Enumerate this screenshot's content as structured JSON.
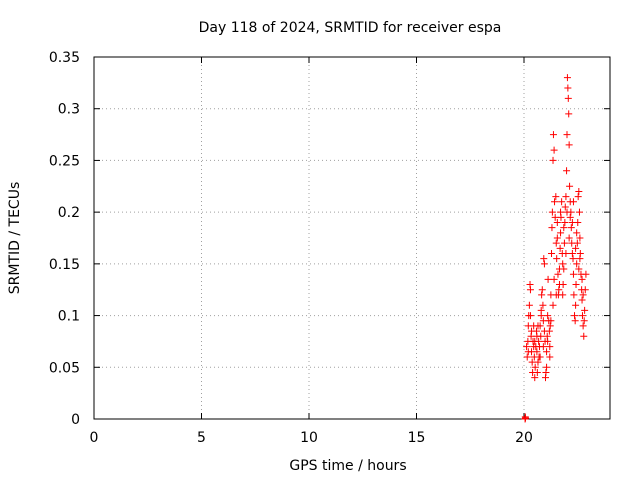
{
  "chart_data": {
    "type": "scatter",
    "title": "Day 118 of 2024, SRMTID for receiver espa",
    "xlabel": "GPS time / hours",
    "ylabel": "SRMTID / TECUs",
    "xlim": [
      0,
      24
    ],
    "ylim": [
      0,
      0.35
    ],
    "x_ticks": [
      "0",
      "5",
      "10",
      "15",
      "20"
    ],
    "y_ticks": [
      "0",
      "0.05",
      "0.1",
      "0.15",
      "0.2",
      "0.25",
      "0.3",
      "0.35"
    ],
    "grid": true,
    "marker": "plus",
    "color": "#ff0000",
    "series": [
      {
        "points": [
          [
            20.05,
            0.0
          ],
          [
            20.06,
            0.002
          ],
          [
            20.07,
            0.001
          ],
          [
            20.12,
            0.07
          ],
          [
            20.15,
            0.06
          ],
          [
            20.18,
            0.075
          ],
          [
            20.2,
            0.09
          ],
          [
            20.22,
            0.1
          ],
          [
            20.25,
            0.11
          ],
          [
            20.28,
            0.13
          ],
          [
            20.3,
            0.125
          ],
          [
            20.33,
            0.08
          ],
          [
            20.35,
            0.065
          ],
          [
            20.38,
            0.055
          ],
          [
            20.4,
            0.045
          ],
          [
            20.42,
            0.075
          ],
          [
            20.45,
            0.09
          ],
          [
            20.48,
            0.06
          ],
          [
            20.5,
            0.04
          ],
          [
            20.52,
            0.05
          ],
          [
            20.55,
            0.07
          ],
          [
            20.58,
            0.085
          ],
          [
            20.6,
            0.065
          ],
          [
            20.62,
            0.045
          ],
          [
            20.65,
            0.055
          ],
          [
            20.68,
            0.075
          ],
          [
            20.7,
            0.06
          ],
          [
            20.72,
            0.07
          ],
          [
            20.75,
            0.09
          ],
          [
            20.78,
            0.08
          ],
          [
            20.8,
            0.1
          ],
          [
            20.82,
            0.12
          ],
          [
            20.85,
            0.125
          ],
          [
            20.88,
            0.11
          ],
          [
            20.9,
            0.095
          ],
          [
            20.92,
            0.155
          ],
          [
            20.95,
            0.15
          ],
          [
            20.98,
            0.075
          ],
          [
            21.0,
            0.04
          ],
          [
            21.02,
            0.045
          ],
          [
            21.05,
            0.065
          ],
          [
            21.08,
            0.08
          ],
          [
            21.1,
            0.1
          ],
          [
            21.12,
            0.135
          ],
          [
            21.15,
            0.095
          ],
          [
            21.18,
            0.085
          ],
          [
            21.2,
            0.07
          ],
          [
            21.22,
            0.09
          ],
          [
            21.25,
            0.12
          ],
          [
            21.28,
            0.16
          ],
          [
            21.3,
            0.185
          ],
          [
            21.32,
            0.2
          ],
          [
            21.35,
            0.25
          ],
          [
            21.37,
            0.275
          ],
          [
            21.4,
            0.26
          ],
          [
            21.42,
            0.21
          ],
          [
            21.45,
            0.195
          ],
          [
            21.48,
            0.215
          ],
          [
            21.5,
            0.17
          ],
          [
            21.52,
            0.155
          ],
          [
            21.55,
            0.175
          ],
          [
            21.58,
            0.14
          ],
          [
            21.6,
            0.12
          ],
          [
            21.62,
            0.125
          ],
          [
            21.65,
            0.13
          ],
          [
            21.68,
            0.165
          ],
          [
            21.7,
            0.18
          ],
          [
            21.72,
            0.195
          ],
          [
            21.75,
            0.21
          ],
          [
            21.78,
            0.16
          ],
          [
            21.8,
            0.15
          ],
          [
            21.82,
            0.13
          ],
          [
            21.85,
            0.145
          ],
          [
            21.88,
            0.17
          ],
          [
            21.9,
            0.19
          ],
          [
            21.92,
            0.205
          ],
          [
            21.95,
            0.215
          ],
          [
            21.98,
            0.24
          ],
          [
            22.0,
            0.275
          ],
          [
            22.02,
            0.33
          ],
          [
            22.04,
            0.32
          ],
          [
            22.06,
            0.31
          ],
          [
            22.08,
            0.295
          ],
          [
            22.1,
            0.265
          ],
          [
            22.12,
            0.225
          ],
          [
            22.15,
            0.21
          ],
          [
            22.18,
            0.2
          ],
          [
            22.2,
            0.185
          ],
          [
            22.22,
            0.17
          ],
          [
            22.25,
            0.16
          ],
          [
            22.28,
            0.155
          ],
          [
            22.3,
            0.14
          ],
          [
            22.32,
            0.12
          ],
          [
            22.35,
            0.1
          ],
          [
            22.38,
            0.095
          ],
          [
            22.4,
            0.11
          ],
          [
            22.42,
            0.13
          ],
          [
            22.45,
            0.15
          ],
          [
            22.48,
            0.17
          ],
          [
            22.5,
            0.19
          ],
          [
            22.52,
            0.215
          ],
          [
            22.55,
            0.22
          ],
          [
            22.58,
            0.2
          ],
          [
            22.6,
            0.175
          ],
          [
            22.62,
            0.16
          ],
          [
            22.65,
            0.14
          ],
          [
            22.68,
            0.125
          ],
          [
            22.7,
            0.115
          ],
          [
            22.72,
            0.1
          ],
          [
            22.75,
            0.09
          ],
          [
            22.78,
            0.08
          ],
          [
            22.8,
            0.095
          ],
          [
            22.82,
            0.105
          ],
          [
            22.85,
            0.125
          ],
          [
            22.88,
            0.14
          ],
          [
            20.3,
            0.1
          ],
          [
            20.45,
            0.07
          ],
          [
            20.6,
            0.08
          ],
          [
            20.75,
            0.06
          ],
          [
            20.9,
            0.07
          ],
          [
            21.05,
            0.05
          ],
          [
            21.2,
            0.06
          ],
          [
            21.35,
            0.11
          ],
          [
            21.5,
            0.12
          ],
          [
            21.65,
            0.145
          ],
          [
            21.8,
            0.12
          ],
          [
            21.95,
            0.16
          ],
          [
            22.1,
            0.175
          ],
          [
            22.25,
            0.19
          ],
          [
            22.4,
            0.165
          ],
          [
            22.55,
            0.145
          ],
          [
            22.7,
            0.135
          ],
          [
            20.2,
            0.065
          ],
          [
            20.35,
            0.085
          ],
          [
            20.5,
            0.075
          ],
          [
            20.65,
            0.09
          ],
          [
            20.8,
            0.105
          ],
          [
            20.95,
            0.085
          ],
          [
            21.1,
            0.075
          ],
          [
            21.25,
            0.095
          ],
          [
            21.4,
            0.135
          ],
          [
            21.55,
            0.19
          ],
          [
            21.7,
            0.2
          ],
          [
            21.85,
            0.185
          ],
          [
            22.0,
            0.2
          ],
          [
            22.15,
            0.195
          ],
          [
            22.3,
            0.21
          ],
          [
            22.45,
            0.18
          ],
          [
            22.6,
            0.155
          ],
          [
            22.75,
            0.12
          ]
        ]
      }
    ]
  }
}
